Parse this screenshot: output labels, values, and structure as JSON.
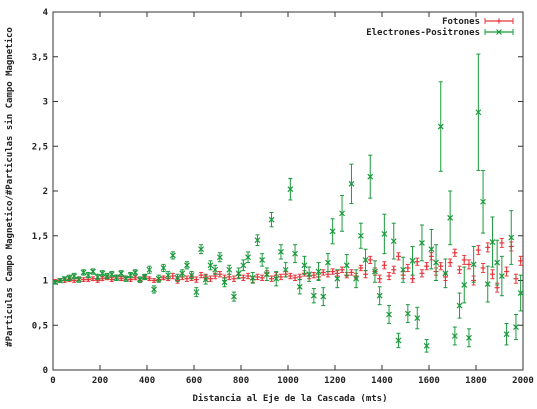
{
  "chart_data": {
    "type": "scatter",
    "title": "",
    "xlabel": "Distancia al Eje de la Cascada (mts)",
    "ylabel": "#Particulas Campo Magnetico/#Particulas sin Campo Magnetico",
    "xlim": [
      0,
      2000
    ],
    "ylim": [
      0,
      4
    ],
    "x_ticks": [
      0,
      200,
      400,
      600,
      800,
      1000,
      1200,
      1400,
      1600,
      1800,
      2000
    ],
    "x_tick_labels": [
      "0",
      "200",
      "400",
      "600",
      "800",
      "1000",
      "1200",
      "1400",
      "1600",
      "1800",
      "2000"
    ],
    "y_ticks": [
      0,
      0.5,
      1,
      1.5,
      2,
      2.5,
      3,
      3.5,
      4
    ],
    "y_tick_labels": [
      "0",
      "0,5",
      "1",
      "1,5",
      "2",
      "2,5",
      "3",
      "3,5",
      "4"
    ],
    "grid": false,
    "legend_position": "top-right",
    "series": [
      {
        "name": "Fotones",
        "color": "#e8383d",
        "marker": "plus",
        "x": [
          10,
          30,
          50,
          70,
          90,
          110,
          130,
          150,
          170,
          190,
          210,
          230,
          250,
          270,
          290,
          310,
          330,
          350,
          370,
          390,
          410,
          430,
          450,
          470,
          490,
          510,
          530,
          550,
          570,
          590,
          610,
          630,
          650,
          670,
          690,
          710,
          730,
          750,
          770,
          790,
          810,
          830,
          850,
          870,
          890,
          910,
          930,
          950,
          970,
          990,
          1010,
          1030,
          1050,
          1070,
          1090,
          1110,
          1130,
          1150,
          1170,
          1190,
          1210,
          1230,
          1250,
          1270,
          1290,
          1310,
          1330,
          1350,
          1370,
          1390,
          1410,
          1430,
          1450,
          1470,
          1490,
          1510,
          1530,
          1550,
          1570,
          1590,
          1610,
          1630,
          1650,
          1670,
          1690,
          1710,
          1730,
          1750,
          1770,
          1790,
          1810,
          1830,
          1850,
          1870,
          1890,
          1910,
          1930,
          1950,
          1970,
          1990
        ],
        "y": [
          0.99,
          1.0,
          1.0,
          1.01,
          1.0,
          1.02,
          1.01,
          1.01,
          1.02,
          1.0,
          1.02,
          1.03,
          1.01,
          1.04,
          1.02,
          1.03,
          1.01,
          1.03,
          1.0,
          1.04,
          1.02,
          1.0,
          1.01,
          1.03,
          1.02,
          1.05,
          1.0,
          1.04,
          1.02,
          1.03,
          1.01,
          1.06,
          1.04,
          1.02,
          1.05,
          1.07,
          1.03,
          1.04,
          1.02,
          1.06,
          1.03,
          1.05,
          1.01,
          1.04,
          1.03,
          1.08,
          1.02,
          1.06,
          1.04,
          1.07,
          1.05,
          1.03,
          1.04,
          1.08,
          1.05,
          1.06,
          1.04,
          1.09,
          1.07,
          1.1,
          1.08,
          1.12,
          1.06,
          1.09,
          1.05,
          1.14,
          1.07,
          1.23,
          1.1,
          1.02,
          1.17,
          1.05,
          1.12,
          1.27,
          1.06,
          1.14,
          1.02,
          1.21,
          1.08,
          1.16,
          1.27,
          1.1,
          1.16,
          1.04,
          1.2,
          1.31,
          1.12,
          1.23,
          1.18,
          1.0,
          1.34,
          1.14,
          1.37,
          1.07,
          0.92,
          1.42,
          1.1,
          1.38,
          1.02,
          1.22
        ],
        "err": [
          0.02,
          0.02,
          0.02,
          0.02,
          0.02,
          0.02,
          0.02,
          0.02,
          0.02,
          0.02,
          0.02,
          0.02,
          0.02,
          0.02,
          0.02,
          0.02,
          0.02,
          0.02,
          0.02,
          0.02,
          0.02,
          0.02,
          0.02,
          0.02,
          0.02,
          0.03,
          0.03,
          0.03,
          0.03,
          0.03,
          0.03,
          0.03,
          0.03,
          0.03,
          0.03,
          0.03,
          0.03,
          0.03,
          0.03,
          0.03,
          0.03,
          0.03,
          0.03,
          0.03,
          0.03,
          0.03,
          0.03,
          0.03,
          0.03,
          0.03,
          0.03,
          0.03,
          0.03,
          0.03,
          0.03,
          0.03,
          0.03,
          0.03,
          0.03,
          0.03,
          0.03,
          0.03,
          0.03,
          0.03,
          0.03,
          0.03,
          0.04,
          0.04,
          0.04,
          0.04,
          0.04,
          0.04,
          0.04,
          0.04,
          0.04,
          0.04,
          0.04,
          0.04,
          0.04,
          0.04,
          0.04,
          0.04,
          0.04,
          0.04,
          0.04,
          0.04,
          0.04,
          0.05,
          0.05,
          0.05,
          0.05,
          0.05,
          0.05,
          0.05,
          0.05,
          0.05,
          0.05,
          0.05,
          0.05,
          0.05
        ]
      },
      {
        "name": "Electrones-Positrones",
        "color": "#1a9a3c",
        "marker": "cross",
        "x": [
          10,
          30,
          50,
          70,
          90,
          110,
          130,
          150,
          170,
          190,
          210,
          230,
          250,
          270,
          290,
          310,
          330,
          350,
          370,
          390,
          410,
          430,
          450,
          470,
          490,
          510,
          530,
          550,
          570,
          590,
          610,
          630,
          650,
          670,
          690,
          710,
          730,
          750,
          770,
          790,
          810,
          830,
          850,
          870,
          890,
          910,
          930,
          950,
          970,
          990,
          1010,
          1030,
          1050,
          1070,
          1090,
          1110,
          1130,
          1150,
          1170,
          1190,
          1210,
          1230,
          1250,
          1270,
          1290,
          1310,
          1330,
          1350,
          1370,
          1390,
          1410,
          1430,
          1450,
          1470,
          1490,
          1510,
          1530,
          1550,
          1570,
          1590,
          1610,
          1630,
          1650,
          1670,
          1690,
          1710,
          1730,
          1750,
          1770,
          1790,
          1810,
          1830,
          1850,
          1870,
          1890,
          1910,
          1930,
          1950,
          1970,
          1990
        ],
        "y": [
          0.98,
          1.0,
          1.02,
          1.03,
          1.05,
          1.01,
          1.09,
          1.06,
          1.1,
          1.04,
          1.08,
          1.05,
          1.07,
          1.03,
          1.08,
          1.02,
          1.06,
          1.09,
          1.01,
          1.04,
          1.12,
          0.9,
          1.02,
          1.14,
          1.06,
          1.28,
          1.03,
          1.08,
          1.17,
          1.06,
          0.87,
          1.35,
          1.01,
          1.17,
          1.12,
          1.26,
          0.98,
          1.12,
          0.82,
          1.08,
          1.17,
          1.26,
          1.03,
          1.45,
          1.23,
          1.07,
          1.68,
          1.02,
          1.32,
          1.12,
          2.02,
          1.3,
          0.93,
          1.17,
          1.07,
          0.83,
          1.1,
          0.82,
          1.2,
          1.55,
          1.02,
          1.75,
          1.17,
          2.08,
          1.02,
          1.5,
          1.23,
          2.16,
          1.1,
          0.83,
          1.52,
          0.62,
          1.44,
          0.33,
          1.12,
          0.63,
          1.22,
          0.58,
          1.42,
          0.27,
          1.35,
          1.2,
          2.72,
          1.08,
          1.7,
          0.38,
          0.72,
          0.95,
          0.36,
          1.18,
          2.88,
          1.88,
          0.96,
          1.43,
          1.2,
          1.05,
          0.4,
          1.48,
          0.48,
          0.86
        ],
        "err": [
          0.02,
          0.02,
          0.02,
          0.03,
          0.03,
          0.03,
          0.03,
          0.03,
          0.03,
          0.03,
          0.03,
          0.03,
          0.03,
          0.03,
          0.03,
          0.03,
          0.03,
          0.03,
          0.03,
          0.03,
          0.04,
          0.04,
          0.04,
          0.04,
          0.04,
          0.04,
          0.04,
          0.04,
          0.04,
          0.04,
          0.05,
          0.05,
          0.05,
          0.05,
          0.05,
          0.05,
          0.05,
          0.05,
          0.05,
          0.06,
          0.06,
          0.06,
          0.06,
          0.06,
          0.07,
          0.07,
          0.08,
          0.08,
          0.08,
          0.08,
          0.12,
          0.1,
          0.08,
          0.1,
          0.08,
          0.08,
          0.1,
          0.1,
          0.1,
          0.14,
          0.1,
          0.2,
          0.12,
          0.22,
          0.1,
          0.14,
          0.12,
          0.24,
          0.12,
          0.1,
          0.22,
          0.1,
          0.2,
          0.08,
          0.14,
          0.1,
          0.16,
          0.12,
          0.2,
          0.07,
          0.22,
          0.2,
          0.5,
          0.16,
          0.3,
          0.1,
          0.14,
          0.2,
          0.1,
          0.2,
          0.65,
          0.35,
          0.2,
          0.28,
          0.25,
          0.22,
          0.12,
          0.3,
          0.14,
          0.2
        ]
      }
    ]
  }
}
